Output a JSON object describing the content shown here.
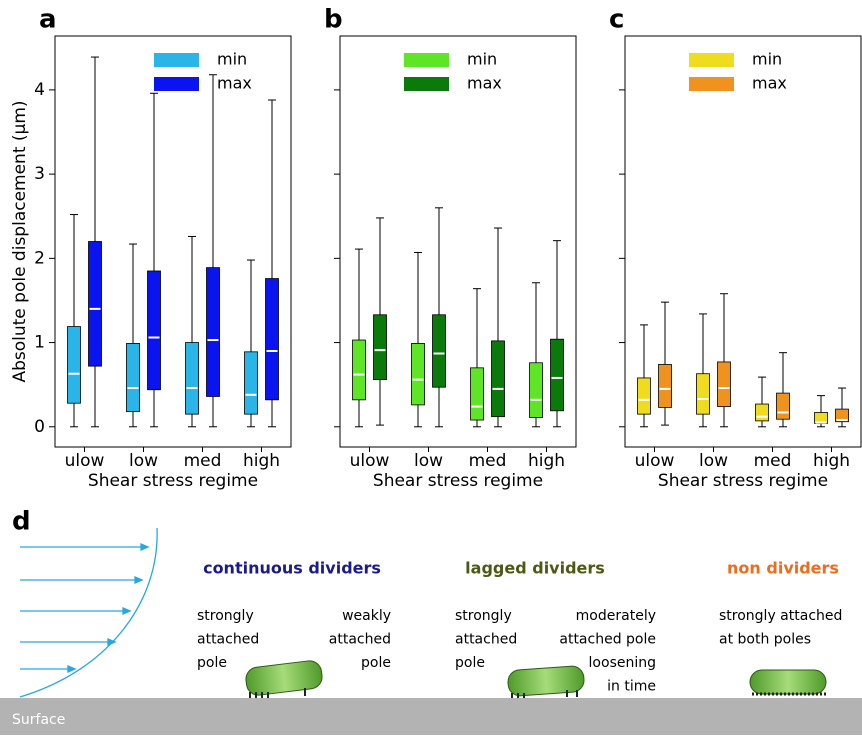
{
  "chart_data": [
    {
      "type": "box",
      "panel": "a",
      "ylabel": "Absolute pole displacement (μm)",
      "xlabel": "Shear stress regime",
      "categories": [
        "ulow",
        "low",
        "med",
        "high"
      ],
      "ylim": [
        -0.24,
        4.64
      ],
      "yticks": [
        0,
        1,
        2,
        3,
        4
      ],
      "sharey": false,
      "legend": "upper right",
      "series": [
        {
          "name": "min",
          "color": "#29b5e8",
          "whislo": [
            0,
            0,
            0,
            0
          ],
          "q1": [
            0.28,
            0.18,
            0.15,
            0.15
          ],
          "median": [
            0.63,
            0.46,
            0.46,
            0.38
          ],
          "q3": [
            1.19,
            0.99,
            1.0,
            0.89
          ],
          "whishi": [
            2.52,
            2.17,
            2.26,
            1.98
          ]
        },
        {
          "name": "max",
          "color": "#0a14f0",
          "whislo": [
            0,
            0,
            0,
            0
          ],
          "q1": [
            0.72,
            0.44,
            0.36,
            0.32
          ],
          "median": [
            1.4,
            1.06,
            1.03,
            0.9
          ],
          "q3": [
            2.2,
            1.85,
            1.89,
            1.76
          ],
          "whishi": [
            4.39,
            3.96,
            4.18,
            3.88
          ]
        }
      ]
    },
    {
      "type": "box",
      "panel": "b",
      "xlabel": "Shear stress regime",
      "categories": [
        "ulow",
        "low",
        "med",
        "high"
      ],
      "ylim": [
        -0.24,
        4.64
      ],
      "yticks": [
        0,
        1,
        2,
        3,
        4
      ],
      "sharey": true,
      "legend": "upper center",
      "series": [
        {
          "name": "min",
          "color": "#5ee626",
          "whislo": [
            0,
            0,
            0,
            0
          ],
          "q1": [
            0.32,
            0.26,
            0.08,
            0.11
          ],
          "median": [
            0.62,
            0.56,
            0.24,
            0.32
          ],
          "q3": [
            1.03,
            0.99,
            0.7,
            0.76
          ],
          "whishi": [
            2.11,
            2.07,
            1.64,
            1.71
          ]
        },
        {
          "name": "max",
          "color": "#0a7a0a",
          "whislo": [
            0.02,
            0,
            0,
            0
          ],
          "q1": [
            0.56,
            0.47,
            0.12,
            0.19
          ],
          "median": [
            0.91,
            0.87,
            0.45,
            0.58
          ],
          "q3": [
            1.33,
            1.33,
            1.02,
            1.04
          ],
          "whishi": [
            2.48,
            2.6,
            2.36,
            2.21
          ]
        }
      ]
    },
    {
      "type": "box",
      "panel": "c",
      "xlabel": "Shear stress regime",
      "categories": [
        "ulow",
        "low",
        "med",
        "high"
      ],
      "ylim": [
        -0.24,
        4.64
      ],
      "yticks": [
        0,
        1,
        2,
        3,
        4
      ],
      "sharey": true,
      "legend": "upper center",
      "series": [
        {
          "name": "min",
          "color": "#f0dc1e",
          "whislo": [
            0,
            0,
            0,
            0
          ],
          "q1": [
            0.15,
            0.15,
            0.07,
            0.04
          ],
          "median": [
            0.32,
            0.33,
            0.12,
            0.05
          ],
          "q3": [
            0.58,
            0.63,
            0.27,
            0.17
          ],
          "whishi": [
            1.21,
            1.34,
            0.59,
            0.37
          ]
        },
        {
          "name": "max",
          "color": "#f0921e",
          "whislo": [
            0.02,
            0,
            0,
            0
          ],
          "q1": [
            0.23,
            0.24,
            0.09,
            0.06
          ],
          "median": [
            0.45,
            0.46,
            0.17,
            0.08
          ],
          "q3": [
            0.74,
            0.77,
            0.4,
            0.21
          ],
          "whishi": [
            1.48,
            1.58,
            0.88,
            0.46
          ]
        }
      ]
    }
  ],
  "diagram": {
    "panel": "d",
    "surface": "Surface",
    "groups": [
      {
        "title": "continuous dividers",
        "color": "#1a1a8c",
        "left": [
          "strongly",
          "attached",
          "pole"
        ],
        "right": [
          "weakly",
          "attached",
          "pole"
        ]
      },
      {
        "title": "lagged dividers",
        "color": "#4a5a12",
        "left": [
          "strongly",
          "attached",
          "pole"
        ],
        "right": [
          "moderately",
          "attached pole",
          "loosening",
          "in time"
        ]
      },
      {
        "title": "non dividers",
        "color": "#f26a1b",
        "left": [
          "strongly attached",
          "at both poles"
        ]
      }
    ]
  }
}
